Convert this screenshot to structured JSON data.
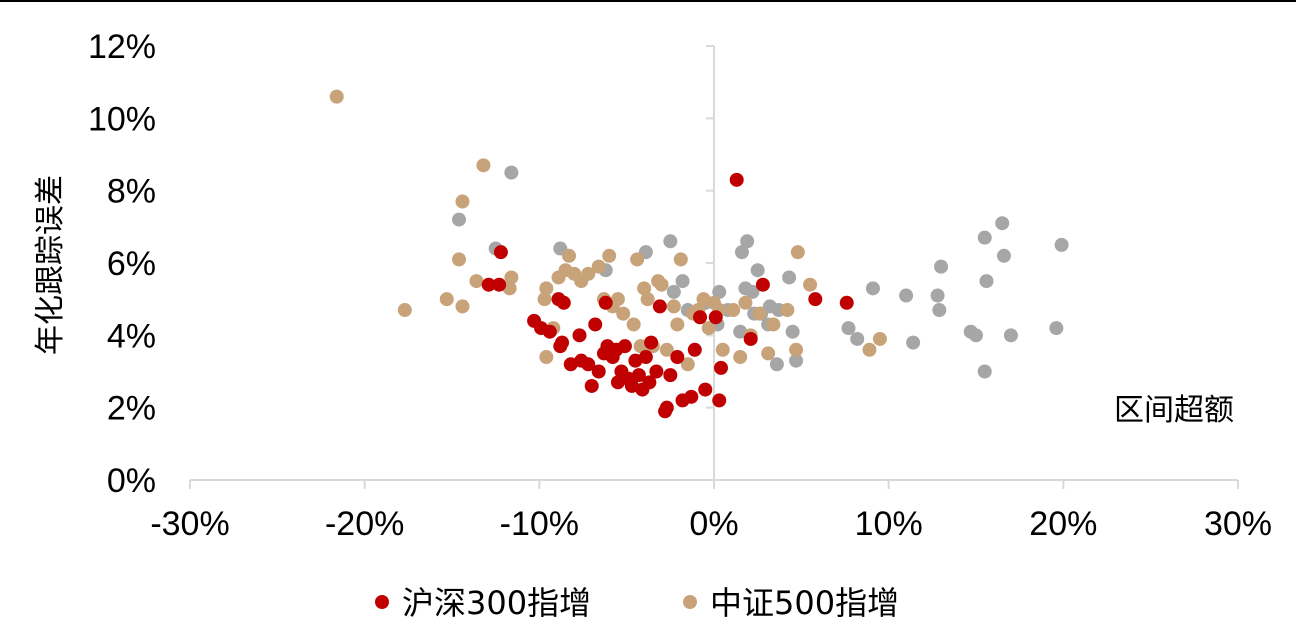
{
  "chart_data": {
    "type": "scatter",
    "title": "",
    "xlabel": "区间超额",
    "ylabel": "年化跟踪误差",
    "xlim": [
      -0.3,
      0.3
    ],
    "ylim": [
      0,
      0.12
    ],
    "x_ticks": [
      "-30%",
      "-20%",
      "-10%",
      "0%",
      "10%",
      "20%",
      "30%"
    ],
    "y_ticks": [
      "0%",
      "2%",
      "4%",
      "6%",
      "8%",
      "10%",
      "12%"
    ],
    "grid": false,
    "legend_position": "bottom",
    "series": [
      {
        "name": "沪深300指增",
        "color": "#c00000",
        "points": [
          [
            0.013,
            0.083
          ],
          [
            -0.122,
            0.063
          ],
          [
            -0.129,
            0.054
          ],
          [
            -0.123,
            0.054
          ],
          [
            -0.103,
            0.044
          ],
          [
            -0.099,
            0.042
          ],
          [
            -0.094,
            0.041
          ],
          [
            -0.089,
            0.05
          ],
          [
            -0.086,
            0.049
          ],
          [
            -0.088,
            0.037
          ],
          [
            -0.087,
            0.038
          ],
          [
            -0.082,
            0.032
          ],
          [
            -0.077,
            0.04
          ],
          [
            -0.076,
            0.033
          ],
          [
            -0.072,
            0.032
          ],
          [
            -0.07,
            0.026
          ],
          [
            -0.068,
            0.043
          ],
          [
            -0.066,
            0.03
          ],
          [
            -0.063,
            0.035
          ],
          [
            -0.061,
            0.037
          ],
          [
            -0.058,
            0.034
          ],
          [
            -0.056,
            0.036
          ],
          [
            -0.055,
            0.027
          ],
          [
            -0.053,
            0.03
          ],
          [
            -0.051,
            0.037
          ],
          [
            -0.049,
            0.028
          ],
          [
            -0.047,
            0.026
          ],
          [
            -0.045,
            0.033
          ],
          [
            -0.043,
            0.029
          ],
          [
            -0.041,
            0.025
          ],
          [
            -0.039,
            0.034
          ],
          [
            -0.037,
            0.027
          ],
          [
            -0.036,
            0.038
          ],
          [
            -0.033,
            0.03
          ],
          [
            -0.031,
            0.048
          ],
          [
            -0.028,
            0.019
          ],
          [
            -0.027,
            0.02
          ],
          [
            -0.025,
            0.029
          ],
          [
            -0.021,
            0.034
          ],
          [
            -0.018,
            0.022
          ],
          [
            -0.013,
            0.023
          ],
          [
            -0.011,
            0.036
          ],
          [
            -0.008,
            0.045
          ],
          [
            -0.005,
            0.025
          ],
          [
            0.003,
            0.022
          ],
          [
            0.004,
            0.031
          ],
          [
            0.021,
            0.039
          ],
          [
            0.028,
            0.054
          ],
          [
            0.058,
            0.05
          ],
          [
            0.076,
            0.049
          ],
          [
            0.001,
            0.045
          ],
          [
            -0.062,
            0.049
          ]
        ]
      },
      {
        "name": "中证500指增",
        "color": "#c8a37a",
        "points": [
          [
            -0.216,
            0.106
          ],
          [
            -0.177,
            0.047
          ],
          [
            -0.153,
            0.05
          ],
          [
            -0.146,
            0.061
          ],
          [
            -0.144,
            0.048
          ],
          [
            -0.144,
            0.077
          ],
          [
            -0.132,
            0.087
          ],
          [
            -0.136,
            0.055
          ],
          [
            -0.117,
            0.053
          ],
          [
            -0.116,
            0.056
          ],
          [
            -0.097,
            0.05
          ],
          [
            -0.096,
            0.053
          ],
          [
            -0.096,
            0.034
          ],
          [
            -0.092,
            0.042
          ],
          [
            -0.089,
            0.056
          ],
          [
            -0.085,
            0.058
          ],
          [
            -0.083,
            0.062
          ],
          [
            -0.08,
            0.057
          ],
          [
            -0.076,
            0.055
          ],
          [
            -0.072,
            0.057
          ],
          [
            -0.066,
            0.059
          ],
          [
            -0.063,
            0.05
          ],
          [
            -0.06,
            0.062
          ],
          [
            -0.058,
            0.048
          ],
          [
            -0.055,
            0.05
          ],
          [
            -0.052,
            0.046
          ],
          [
            -0.049,
            0.028
          ],
          [
            -0.046,
            0.043
          ],
          [
            -0.044,
            0.061
          ],
          [
            -0.042,
            0.037
          ],
          [
            -0.04,
            0.053
          ],
          [
            -0.038,
            0.05
          ],
          [
            -0.035,
            0.037
          ],
          [
            -0.032,
            0.055
          ],
          [
            -0.03,
            0.054
          ],
          [
            -0.027,
            0.036
          ],
          [
            -0.023,
            0.048
          ],
          [
            -0.021,
            0.043
          ],
          [
            -0.019,
            0.061
          ],
          [
            -0.015,
            0.032
          ],
          [
            -0.012,
            0.046
          ],
          [
            -0.009,
            0.047
          ],
          [
            -0.006,
            0.05
          ],
          [
            -0.003,
            0.042
          ],
          [
            0.0,
            0.049
          ],
          [
            0.005,
            0.036
          ],
          [
            0.011,
            0.047
          ],
          [
            0.015,
            0.034
          ],
          [
            0.018,
            0.049
          ],
          [
            0.021,
            0.04
          ],
          [
            0.026,
            0.046
          ],
          [
            0.031,
            0.035
          ],
          [
            0.034,
            0.043
          ],
          [
            0.042,
            0.047
          ],
          [
            0.047,
            0.036
          ],
          [
            0.048,
            0.063
          ],
          [
            0.055,
            0.054
          ],
          [
            0.089,
            0.036
          ],
          [
            0.095,
            0.039
          ],
          [
            0.003,
            0.047
          ]
        ]
      },
      {
        "name": "",
        "color": "#a6a6a6",
        "points": [
          [
            -0.146,
            0.072
          ],
          [
            -0.125,
            0.064
          ],
          [
            -0.116,
            0.085
          ],
          [
            -0.088,
            0.064
          ],
          [
            -0.062,
            0.058
          ],
          [
            -0.039,
            0.063
          ],
          [
            -0.025,
            0.066
          ],
          [
            -0.023,
            0.052
          ],
          [
            -0.018,
            0.055
          ],
          [
            -0.015,
            0.047
          ],
          [
            -0.005,
            0.049
          ],
          [
            0.003,
            0.052
          ],
          [
            0.008,
            0.047
          ],
          [
            0.015,
            0.041
          ],
          [
            0.016,
            0.063
          ],
          [
            0.018,
            0.053
          ],
          [
            0.019,
            0.066
          ],
          [
            0.022,
            0.052
          ],
          [
            0.023,
            0.046
          ],
          [
            0.025,
            0.058
          ],
          [
            0.027,
            0.046
          ],
          [
            0.031,
            0.043
          ],
          [
            0.032,
            0.048
          ],
          [
            0.036,
            0.032
          ],
          [
            0.043,
            0.056
          ],
          [
            0.045,
            0.041
          ],
          [
            0.047,
            0.033
          ],
          [
            0.077,
            0.042
          ],
          [
            0.082,
            0.039
          ],
          [
            0.091,
            0.053
          ],
          [
            0.11,
            0.051
          ],
          [
            0.114,
            0.038
          ],
          [
            0.128,
            0.051
          ],
          [
            0.129,
            0.047
          ],
          [
            0.13,
            0.059
          ],
          [
            0.147,
            0.041
          ],
          [
            0.15,
            0.04
          ],
          [
            0.155,
            0.067
          ],
          [
            0.156,
            0.055
          ],
          [
            0.155,
            0.03
          ],
          [
            0.165,
            0.071
          ],
          [
            0.166,
            0.062
          ],
          [
            0.17,
            0.04
          ],
          [
            0.196,
            0.042
          ],
          [
            0.199,
            0.065
          ],
          [
            0.002,
            0.043
          ],
          [
            0.037,
            0.047
          ]
        ]
      }
    ]
  }
}
